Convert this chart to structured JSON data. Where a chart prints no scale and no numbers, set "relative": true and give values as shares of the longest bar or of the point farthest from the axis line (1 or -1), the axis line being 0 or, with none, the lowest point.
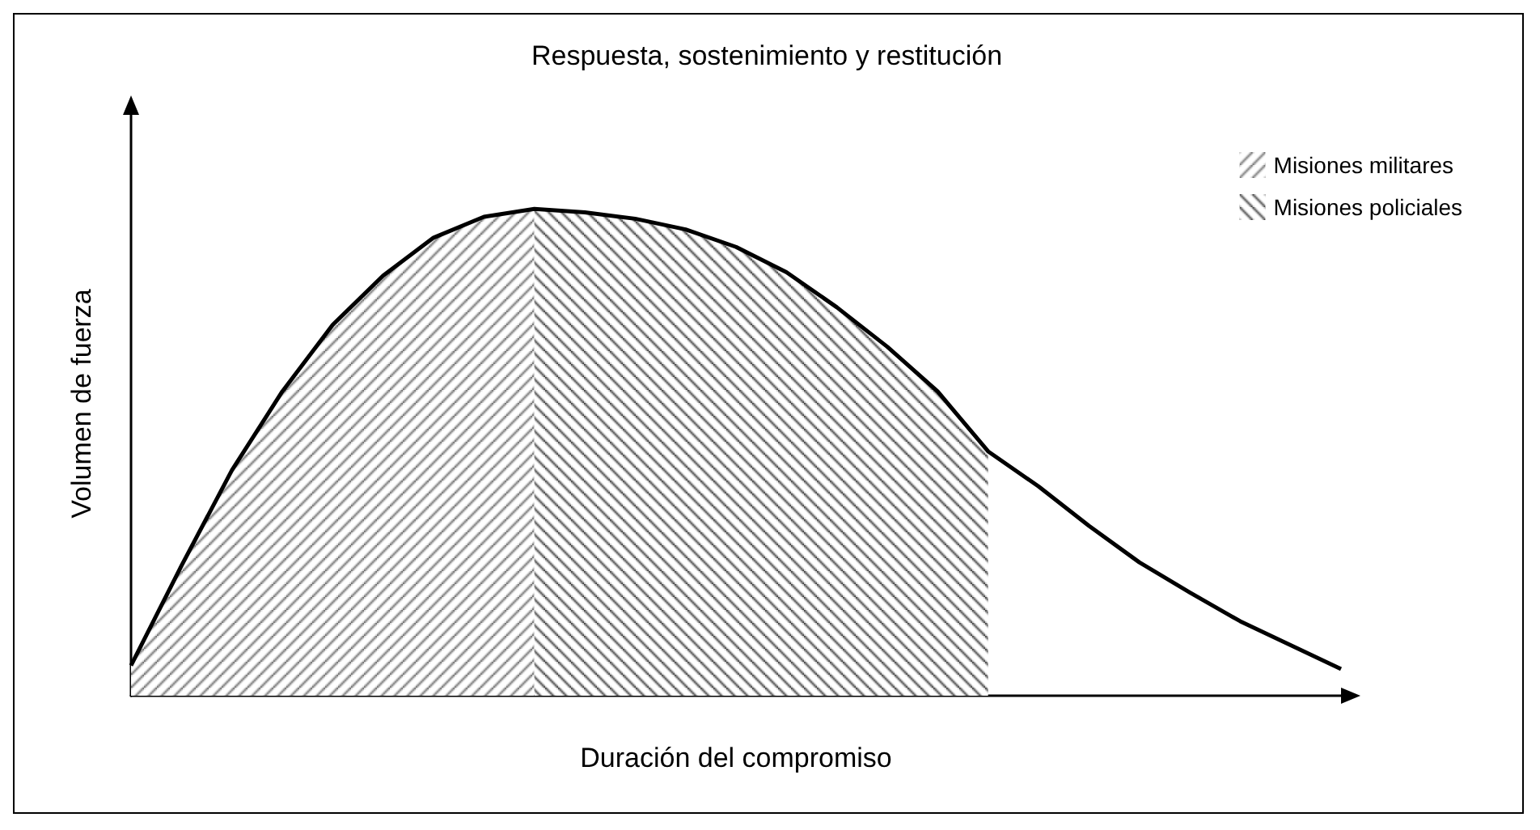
{
  "chart_data": {
    "type": "area",
    "title": "Respuesta, sostenimiento y restitución",
    "xlabel": "Duración del compromiso",
    "ylabel": "Volumen de fuerza",
    "relative": true,
    "legend": "top right",
    "grid": false,
    "marker": "none",
    "categories": [
      null,
      null,
      null,
      null,
      null,
      null,
      null,
      null,
      null,
      null,
      null,
      null,
      null,
      null,
      null,
      null,
      null,
      null,
      null,
      null,
      null,
      null,
      null,
      null,
      null
    ],
    "series": [
      {
        "type": "line",
        "color": "#000000",
        "values": [
          0.062,
          0.267,
          0.463,
          0.625,
          0.762,
          0.863,
          0.941,
          0.984,
          1.0,
          0.993,
          0.98,
          0.958,
          0.922,
          0.87,
          0.798,
          0.717,
          0.625,
          0.502,
          0.43,
          0.349,
          0.274,
          0.212,
          0.153,
          0.104,
          0.055
        ]
      },
      {
        "type": "area",
        "name": "Misiones militares",
        "color": "#666666",
        "values": [
          0.062,
          0.267,
          0.463,
          0.625,
          0.762,
          0.863,
          0.941,
          0.984,
          1.0,
          null,
          null,
          null,
          null,
          null,
          null,
          null,
          null,
          null,
          null,
          null,
          null,
          null,
          null,
          null,
          null
        ]
      },
      {
        "type": "area",
        "name": "Misiones policiales",
        "color": "#333333",
        "values": [
          null,
          null,
          null,
          null,
          null,
          null,
          null,
          null,
          1.0,
          0.993,
          0.98,
          0.958,
          0.922,
          0.87,
          0.798,
          0.717,
          0.625,
          0.502,
          null,
          null,
          null,
          null,
          null,
          null,
          null
        ]
      }
    ]
  }
}
